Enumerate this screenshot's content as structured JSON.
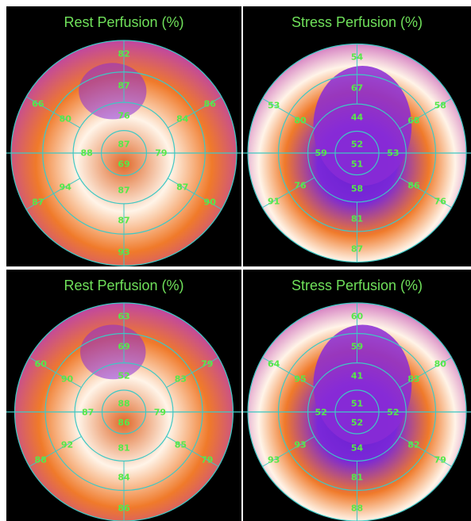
{
  "panels": [
    {
      "title": "Rest Perfusion (%)",
      "palette": "warm",
      "ring_labels": {
        "basal": [
          "82",
          "86",
          "90",
          "93",
          "87",
          "66"
        ],
        "mid": [
          "87",
          "84",
          "87",
          "87",
          "94",
          "80"
        ],
        "apical": [
          "76",
          "79",
          "87",
          "88"
        ],
        "apex": "87",
        "extra": [
          "69"
        ]
      }
    },
    {
      "title": "Stress Perfusion (%)",
      "palette": "purple",
      "ring_labels": {
        "basal": [
          "54",
          "58",
          "76",
          "87",
          "91",
          "53"
        ],
        "mid": [
          "67",
          "68",
          "86",
          "81",
          "76",
          "80"
        ],
        "apical": [
          "44",
          "53",
          "58",
          "59"
        ],
        "apex": "52",
        "extra": [
          "51"
        ]
      }
    },
    {
      "title": "Rest Perfusion (%)",
      "palette": "warm",
      "ring_labels": {
        "basal": [
          "63",
          "79",
          "79",
          "86",
          "88",
          "60"
        ],
        "mid": [
          "69",
          "83",
          "85",
          "84",
          "92",
          "90"
        ],
        "apical": [
          "52",
          "79",
          "81",
          "87"
        ],
        "apex": "88",
        "extra": [
          "86"
        ]
      }
    },
    {
      "title": "Stress Perfusion (%)",
      "palette": "purple",
      "ring_labels": {
        "basal": [
          "60",
          "80",
          "79",
          "88",
          "93",
          "64"
        ],
        "mid": [
          "59",
          "83",
          "82",
          "81",
          "93",
          "95"
        ],
        "apical": [
          "41",
          "52",
          "54",
          "52"
        ],
        "apex": "51",
        "extra": [
          "52"
        ]
      }
    }
  ],
  "colors": {
    "text_green": "#57e84a",
    "grid_teal": "#3fc8c4",
    "hot_white": "#fff4e8",
    "orange": "#f07a2a",
    "purple": "#8a2cd6"
  }
}
